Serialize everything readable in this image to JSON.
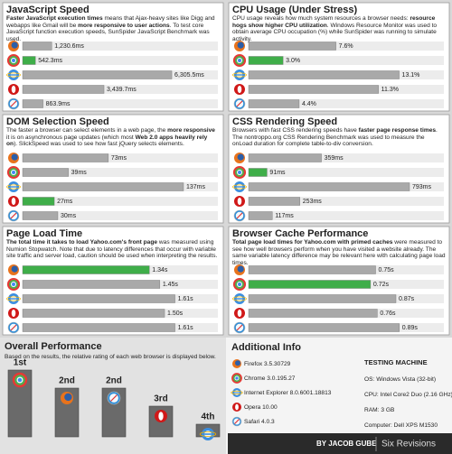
{
  "chart_data": [
    {
      "type": "bar",
      "orientation": "horizontal",
      "title": "JavaScript Speed",
      "description": [
        {
          "text": "Faster JavaScript execution times",
          "bold": true
        },
        {
          "text": " means that Ajax-heavy sites like Digg and webapps like Gmail will be ",
          "bold": false
        },
        {
          "text": "more responsive to user actions",
          "bold": true
        },
        {
          "text": ". To test core JavaScript function execution speeds, SunSpider JavaScript Benchmark was used.",
          "bold": false
        }
      ],
      "values": [
        1230.6,
        542.3,
        6305.5,
        3439.7,
        863.9
      ],
      "value_labels": [
        "1,230.6ms",
        "542.3ms",
        "6,305.5ms",
        "3,439.7ms",
        "863.9ms"
      ],
      "colors": [
        "#a9a9a9",
        "#3fae49",
        "#a9a9a9",
        "#a9a9a9",
        "#a9a9a9"
      ],
      "xlim": [
        0,
        6800
      ]
    },
    {
      "type": "bar",
      "orientation": "horizontal",
      "title": "CPU Usage (Under Stress)",
      "description": [
        {
          "text": "CPU usage reveals how much system resources a browser needs: ",
          "bold": false
        },
        {
          "text": "resource hogs show higher CPU utilization",
          "bold": true
        },
        {
          "text": ". Windows Resource Monitor was used to obtain average CPU occupation (%) while SunSpider was running to simulate activity.",
          "bold": false
        }
      ],
      "values": [
        7.6,
        3.0,
        13.1,
        11.3,
        4.4
      ],
      "value_labels": [
        "7.6%",
        "3.0%",
        "13.1%",
        "11.3%",
        "4.4%"
      ],
      "colors": [
        "#a9a9a9",
        "#3fae49",
        "#a9a9a9",
        "#a9a9a9",
        "#a9a9a9"
      ],
      "xlim": [
        0,
        14
      ]
    },
    {
      "type": "bar",
      "orientation": "horizontal",
      "title": "DOM Selection Speed",
      "description": [
        {
          "text": "The faster a browser can select elements in a web page, the ",
          "bold": false
        },
        {
          "text": "more responsive",
          "bold": true
        },
        {
          "text": " it is on asynchronous page updates (which most ",
          "bold": false
        },
        {
          "text": "Web 2.0 apps heavily rely on",
          "bold": true
        },
        {
          "text": "). SlickSpeed was used to see how fast jQuery selects elements.",
          "bold": false
        }
      ],
      "values": [
        73,
        39,
        137,
        27,
        30
      ],
      "value_labels": [
        "73ms",
        "39ms",
        "137ms",
        "27ms",
        "30ms"
      ],
      "colors": [
        "#a9a9a9",
        "#a9a9a9",
        "#a9a9a9",
        "#3fae49",
        "#a9a9a9"
      ],
      "xlim": [
        0,
        137
      ]
    },
    {
      "type": "bar",
      "orientation": "horizontal",
      "title": "CSS Rendering Speed",
      "description": [
        {
          "text": "Browsers with fast CSS rendering speeds have ",
          "bold": false
        },
        {
          "text": "faster page response times",
          "bold": true
        },
        {
          "text": ". The nontroppo.org CSS Rendering Benchmark was used to measure the onLoad duration for complete table-to-div conversion.",
          "bold": false
        }
      ],
      "values": [
        359,
        91,
        793,
        253,
        117
      ],
      "value_labels": [
        "359ms",
        "91ms",
        "793ms",
        "253ms",
        "117ms"
      ],
      "colors": [
        "#a9a9a9",
        "#3fae49",
        "#a9a9a9",
        "#a9a9a9",
        "#a9a9a9"
      ],
      "xlim": [
        0,
        793
      ]
    },
    {
      "type": "bar",
      "orientation": "horizontal",
      "title": "Page Load Time",
      "description": [
        {
          "text": "The total time it takes to load Yahoo.com's front page",
          "bold": true
        },
        {
          "text": " was measured using Numion Stopwatch. Note that due to latency differences that occur with variable site traffic and server load, caution should be used when interpreting the results.",
          "bold": false
        }
      ],
      "values": [
        1.34,
        1.45,
        1.61,
        1.5,
        1.61
      ],
      "value_labels": [
        "1.34s",
        "1.45s",
        "1.61s",
        "1.50s",
        "1.61s"
      ],
      "colors": [
        "#3fae49",
        "#a9a9a9",
        "#a9a9a9",
        "#a9a9a9",
        "#a9a9a9"
      ],
      "xlim": [
        0,
        1.7
      ]
    },
    {
      "type": "bar",
      "orientation": "horizontal",
      "title": "Browser Cache Performance",
      "description": [
        {
          "text": "Total page load times for Yahoo.com with primed caches",
          "bold": true
        },
        {
          "text": " were measured to see how well browsers perform when you have visited a website already. The same variable latency difference may be relevant here with calculating page load times.",
          "bold": false
        }
      ],
      "values": [
        0.75,
        0.72,
        0.87,
        0.76,
        0.89
      ],
      "value_labels": [
        "0.75s",
        "0.72s",
        "0.87s",
        "0.76s",
        "0.89s"
      ],
      "colors": [
        "#a9a9a9",
        "#3fae49",
        "#a9a9a9",
        "#a9a9a9",
        "#a9a9a9"
      ],
      "xlim": [
        0,
        0.95
      ]
    }
  ],
  "overall": {
    "title": "Overall Performance",
    "description": "Based on the results, the relative rating of each web browser is displayed below.",
    "ranks": [
      {
        "value": 1,
        "label": "1st"
      },
      {
        "value": 2,
        "label": "2nd"
      },
      {
        "value": 2,
        "label": "2nd"
      },
      {
        "value": 3,
        "label": "3rd"
      },
      {
        "value": 4,
        "label": "4th"
      }
    ]
  },
  "additional_info": {
    "title": "Additional Info",
    "versions": [
      "Firefox 3.5.30729",
      "Chrome 3.0.195.27",
      "Internet Explorer 8.0.6001.18813",
      "Opera 10.00",
      "Safari 4.0.3"
    ],
    "machine_title": "TESTING MACHINE",
    "machine": [
      "OS: Windows Vista (32-bit)",
      "CPU: Intel Core2 Duo (2.16 GHz)",
      "RAM: 3 GB",
      "Computer: Dell XPS M1530"
    ]
  },
  "footer": {
    "author": "BY JACOB GUBE",
    "site": "Six Revisions"
  }
}
